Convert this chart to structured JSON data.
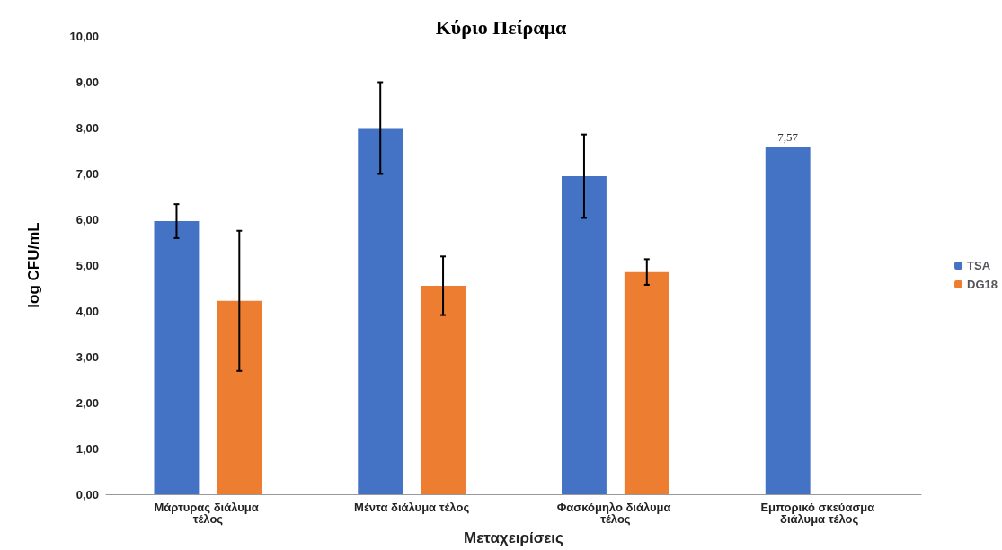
{
  "chart_data": {
    "type": "bar",
    "title": "Κύριο Πείραμα",
    "xlabel": "Μεταχειρίσεις",
    "ylabel": "log CFU/mL",
    "categories": [
      "Μάρτυρας διάλυμα τέλος",
      "Μέντα διάλυμα τέλος",
      "Φασκόμηλο διάλυμα τέλος",
      "Εμπορικό σκεύασμα διάλυμα τέλος"
    ],
    "series": [
      {
        "name": "TSA",
        "color": "#4472c4",
        "values": [
          5.96,
          7.99,
          6.94,
          7.57
        ],
        "errors": [
          0.37,
          1.0,
          0.91,
          null
        ],
        "value_labels": [
          null,
          null,
          null,
          "7,57"
        ]
      },
      {
        "name": "DG18",
        "color": "#ed7d31",
        "values": [
          4.22,
          4.55,
          4.85,
          null
        ],
        "errors": [
          1.53,
          0.64,
          0.28,
          null
        ]
      }
    ],
    "ylim": [
      0,
      10
    ],
    "yticks": [
      {
        "value": 0,
        "label": "0,00"
      },
      {
        "value": 1,
        "label": "1,00"
      },
      {
        "value": 2,
        "label": "2,00"
      },
      {
        "value": 3,
        "label": "3,00"
      },
      {
        "value": 4,
        "label": "4,00"
      },
      {
        "value": 5,
        "label": "5,00"
      },
      {
        "value": 6,
        "label": "6,00"
      },
      {
        "value": 7,
        "label": "7,00"
      },
      {
        "value": 8,
        "label": "8,00"
      },
      {
        "value": 9,
        "label": "9,00"
      },
      {
        "value": 10,
        "label": "10,00"
      }
    ],
    "grid": false,
    "legend": "right"
  }
}
